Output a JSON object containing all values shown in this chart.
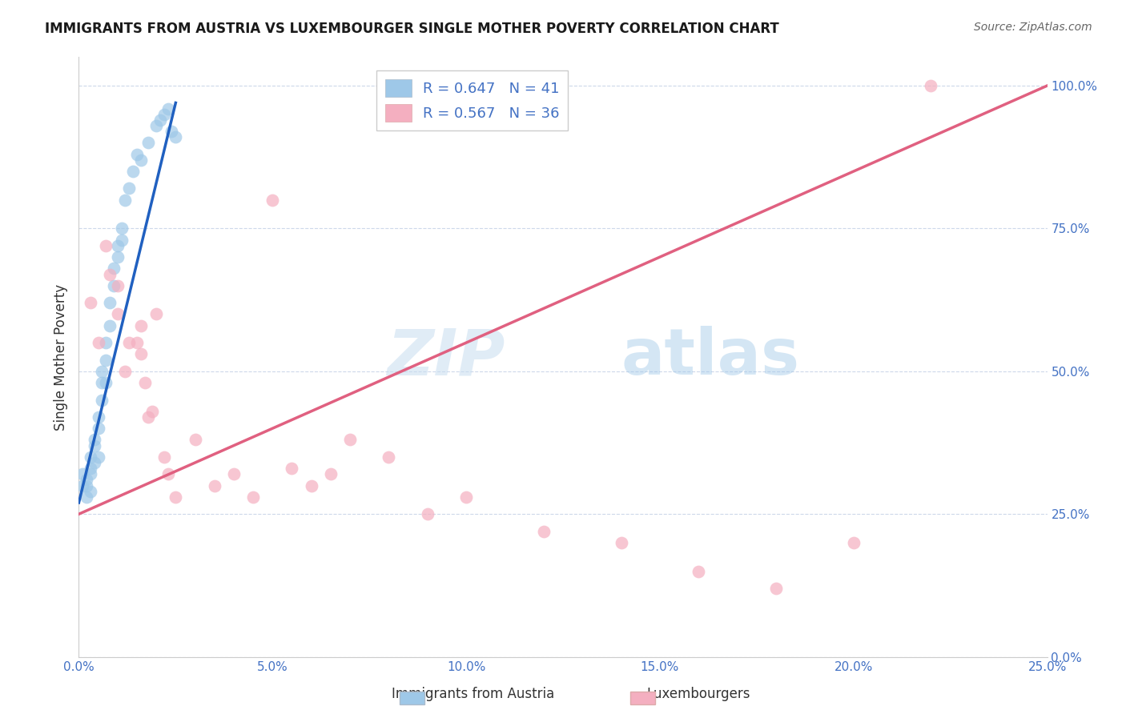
{
  "title": "IMMIGRANTS FROM AUSTRIA VS LUXEMBOURGER SINGLE MOTHER POVERTY CORRELATION CHART",
  "source": "Source: ZipAtlas.com",
  "ylabel": "Single Mother Poverty",
  "legend_label1": "Immigrants from Austria",
  "legend_label2": "Luxembourgers",
  "R1": 0.647,
  "N1": 41,
  "R2": 0.567,
  "N2": 36,
  "xlim": [
    0.0,
    0.25
  ],
  "ylim": [
    0.0,
    1.05
  ],
  "x_ticks": [
    0.0,
    0.05,
    0.1,
    0.15,
    0.2,
    0.25
  ],
  "y_ticks": [
    0.0,
    0.25,
    0.5,
    0.75,
    1.0
  ],
  "color_blue": "#9ec8e8",
  "color_pink": "#f4afc0",
  "color_blue_line": "#2060c0",
  "color_pink_line": "#e06080",
  "background_color": "#ffffff",
  "watermark_zip": "ZIP",
  "watermark_atlas": "atlas",
  "blue_scatter_x": [
    0.001,
    0.001,
    0.002,
    0.002,
    0.002,
    0.003,
    0.003,
    0.003,
    0.003,
    0.004,
    0.004,
    0.004,
    0.005,
    0.005,
    0.005,
    0.006,
    0.006,
    0.006,
    0.007,
    0.007,
    0.007,
    0.008,
    0.008,
    0.009,
    0.009,
    0.01,
    0.01,
    0.011,
    0.011,
    0.012,
    0.013,
    0.014,
    0.015,
    0.016,
    0.018,
    0.02,
    0.021,
    0.022,
    0.023,
    0.024,
    0.025
  ],
  "blue_scatter_y": [
    0.3,
    0.32,
    0.31,
    0.3,
    0.28,
    0.33,
    0.35,
    0.32,
    0.29,
    0.38,
    0.37,
    0.34,
    0.42,
    0.4,
    0.35,
    0.48,
    0.5,
    0.45,
    0.55,
    0.52,
    0.48,
    0.62,
    0.58,
    0.68,
    0.65,
    0.72,
    0.7,
    0.75,
    0.73,
    0.8,
    0.82,
    0.85,
    0.88,
    0.87,
    0.9,
    0.93,
    0.94,
    0.95,
    0.96,
    0.92,
    0.91
  ],
  "blue_line_x0": 0.0,
  "blue_line_x1": 0.025,
  "blue_line_y0": 0.27,
  "blue_line_y1": 0.97,
  "pink_scatter_x": [
    0.003,
    0.005,
    0.007,
    0.008,
    0.01,
    0.01,
    0.012,
    0.013,
    0.015,
    0.016,
    0.016,
    0.017,
    0.018,
    0.019,
    0.02,
    0.022,
    0.023,
    0.025,
    0.03,
    0.035,
    0.04,
    0.045,
    0.05,
    0.055,
    0.06,
    0.065,
    0.07,
    0.08,
    0.09,
    0.1,
    0.12,
    0.14,
    0.16,
    0.18,
    0.2,
    0.22
  ],
  "pink_scatter_y": [
    0.62,
    0.55,
    0.72,
    0.67,
    0.65,
    0.6,
    0.5,
    0.55,
    0.55,
    0.58,
    0.53,
    0.48,
    0.42,
    0.43,
    0.6,
    0.35,
    0.32,
    0.28,
    0.38,
    0.3,
    0.32,
    0.28,
    0.8,
    0.33,
    0.3,
    0.32,
    0.38,
    0.35,
    0.25,
    0.28,
    0.22,
    0.2,
    0.15,
    0.12,
    0.2,
    1.0
  ],
  "pink_line_x0": 0.0,
  "pink_line_x1": 0.25,
  "pink_line_y0": 0.25,
  "pink_line_y1": 1.0
}
